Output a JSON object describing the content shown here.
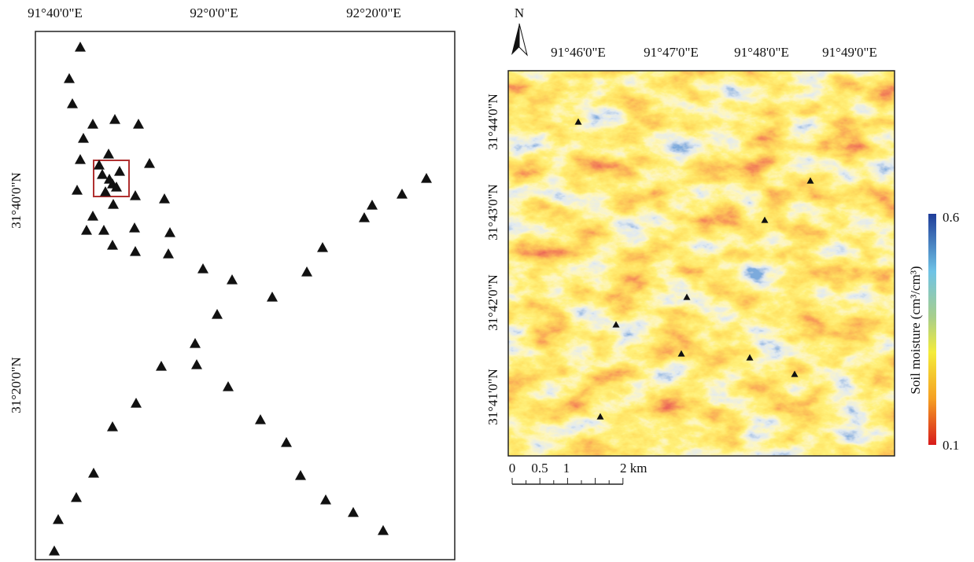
{
  "left_map": {
    "x_labels": [
      "91°40'0\"E",
      "92°0'0\"E",
      "92°20'0\"E"
    ],
    "y_labels": [
      "31°40'0\"N",
      "31°20'0\"N"
    ]
  },
  "right_map": {
    "north": "N",
    "x_labels": [
      "91°46'0\"E",
      "91°47'0\"E",
      "91°48'0\"E",
      "91°49'0\"E"
    ],
    "y_labels": [
      "31°44'0\"N",
      "31°43'0\"N",
      "31°42'0\"N",
      "31°41'0\"N"
    ],
    "scale_bar": [
      "0",
      "0.5",
      "1",
      "2 km"
    ],
    "legend": {
      "title": "Soil moisture (cm³/cm³)",
      "max_label": "0.6",
      "min_label": "0.1"
    }
  }
}
